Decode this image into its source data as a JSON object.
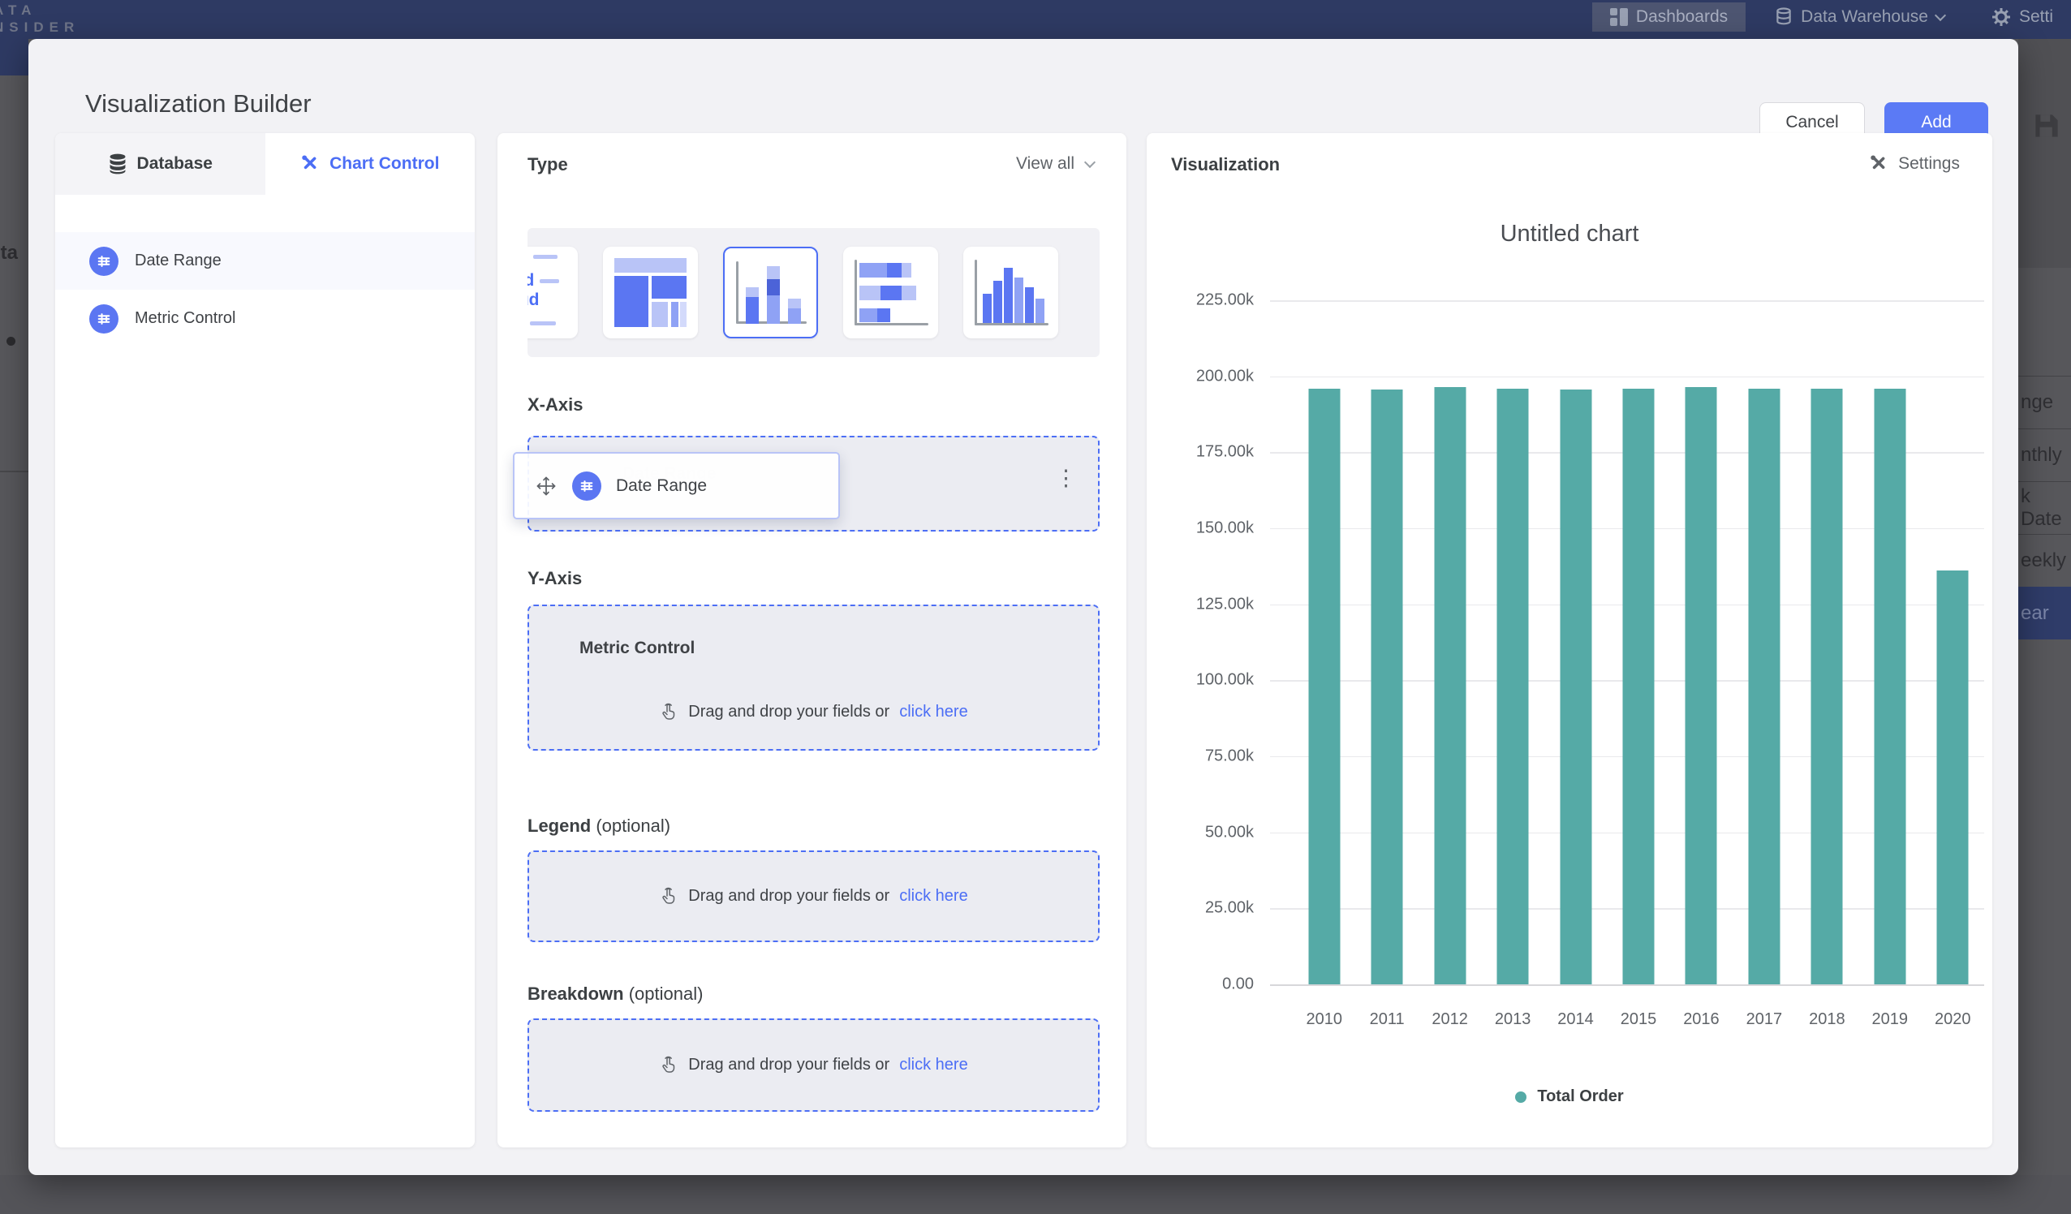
{
  "nav": {
    "logo_line1": "ATA",
    "logo_line2": "NSIDER",
    "dashboards": "Dashboards",
    "data_warehouse": "Data Warehouse",
    "settings": "Setti"
  },
  "background_fragments": {
    "left_text": "ota",
    "right_items": [
      "nge",
      "nthly",
      "k Date",
      "eekly",
      "ear"
    ],
    "right_active": "ear"
  },
  "modal": {
    "title": "Visualization Builder",
    "cancel_label": "Cancel",
    "add_label": "Add",
    "left_panel": {
      "tabs": [
        {
          "label": "Database"
        },
        {
          "label": "Chart Control"
        }
      ],
      "active_tab": "Chart Control",
      "fields": [
        {
          "label": "Date Range"
        },
        {
          "label": "Metric Control"
        }
      ]
    },
    "builder": {
      "type_section": {
        "title": "Type",
        "view_all": "View all",
        "wordcloud": [
          "Word",
          "Cloud"
        ],
        "selected_type": "stacked-column"
      },
      "x_axis": {
        "title": "X-Axis",
        "field": "Date Range",
        "ghost": "Date Range"
      },
      "y_axis": {
        "title": "Y-Axis",
        "placeholder_title": "Metric Control",
        "drop_text": "Drag and drop your fields or",
        "drop_link": "click here"
      },
      "legend_section": {
        "title": "Legend",
        "optional": "(optional)",
        "drop_text": "Drag and drop your fields or",
        "drop_link": "click here"
      },
      "breakdown_section": {
        "title": "Breakdown",
        "optional": "(optional)",
        "drop_text": "Drag and drop your fields or",
        "drop_link": "click here"
      }
    },
    "visualization": {
      "title": "Visualization",
      "settings_label": "Settings"
    }
  },
  "chart_data": {
    "type": "bar",
    "title": "Untitled chart",
    "categories": [
      "2010",
      "2011",
      "2012",
      "2013",
      "2014",
      "2015",
      "2016",
      "2017",
      "2018",
      "2019",
      "2020"
    ],
    "series": [
      {
        "name": "Total Order",
        "color": "#55aaa6",
        "values": [
          195800,
          195600,
          196400,
          195900,
          195700,
          195900,
          196400,
          196000,
          195800,
          196000,
          136100
        ]
      }
    ],
    "ylim": [
      0,
      225000
    ],
    "y_tick_labels": [
      "225.00k",
      "200.00k",
      "175.00k",
      "150.00k",
      "125.00k",
      "100.00k",
      "75.00k",
      "50.00k",
      "25.00k",
      "0.00"
    ],
    "grid": "horizontal",
    "legend_position": "bottom"
  },
  "colors": {
    "accent": "#4c6ef5",
    "accent_fill": "#5b76f2",
    "teal": "#55aaa6",
    "navy": "#2e3a63"
  }
}
